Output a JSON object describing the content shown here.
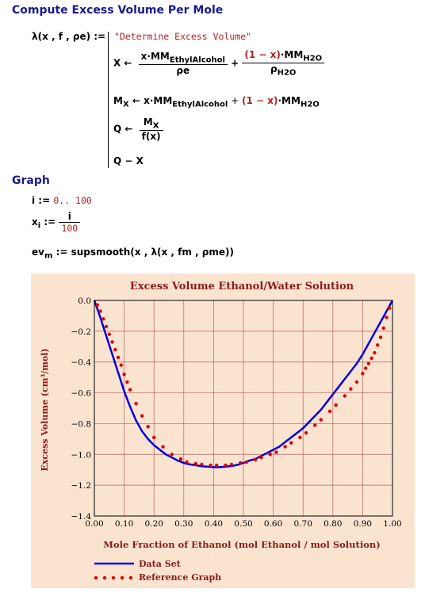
{
  "headings": {
    "compute": "Compute Excess Volume Per Mole",
    "graph": "Graph"
  },
  "program": {
    "def_lhs": "λ(x , f , ρe) :=",
    "comment": "\"Determine Excess Volume\"",
    "line_x": {
      "lhs": "X ←",
      "num1": "x·MM",
      "num1_sub": "EthylAlcohol",
      "den1": "ρe",
      "plus": "+",
      "num2_a": "(1 − x)",
      "num2_b": "·MM",
      "num2_sub": "H2O",
      "den2": "ρ",
      "den2_sub": "H2O"
    },
    "line_mx": {
      "lhs": "M",
      "lhs_sub": "X",
      "arrow": "← x·MM",
      "sub1": "EthylAlcohol",
      "plus": " + ",
      "term2_a": "(1 − x)",
      "term2_b": "·MM",
      "sub2": "H2O"
    },
    "line_q": {
      "lhs": "Q ←",
      "num": "M",
      "num_sub": "X",
      "den": "f(x)"
    },
    "line_ret": "Q − X"
  },
  "graph_defs": {
    "range_lhs": "i :=",
    "range_val": "0.. 100",
    "x_lhs": "x",
    "x_sub": "i",
    "x_assign": ":=",
    "x_num": "i",
    "x_den": "100",
    "ev_lhs": "ev",
    "ev_sub": "m",
    "ev_rhs": ":= supsmooth(x , λ(x , fm , ρme))"
  },
  "chart_data": {
    "type": "line",
    "title": "Excess Volume Ethanol/Water Solution",
    "xlabel": "Mole Fraction of Ethanol (mol Ethanol / mol Solution)",
    "ylabel": "Excess Volume (cm³/mol)",
    "xlim": [
      0,
      1
    ],
    "ylim": [
      -1.4,
      0
    ],
    "x_ticks": [
      "0.00",
      "0.10",
      "0.20",
      "0.30",
      "0.40",
      "0.50",
      "0.60",
      "0.70",
      "0.80",
      "0.90",
      "1.00"
    ],
    "y_ticks": [
      "0.0",
      "−0.2",
      "−0.4",
      "−0.6",
      "−0.8",
      "−1.0",
      "−1.2",
      "−1.4"
    ],
    "grid": true,
    "legend_position": "bottom-left",
    "colors": {
      "data_set": "#0000e0",
      "reference": "#e00000",
      "grid": "#b06060",
      "background": "#fbe4cf"
    },
    "series": [
      {
        "name": "Data Set",
        "style": "line",
        "x": [
          0,
          0.02,
          0.04,
          0.06,
          0.08,
          0.1,
          0.12,
          0.14,
          0.16,
          0.18,
          0.2,
          0.22,
          0.24,
          0.26,
          0.28,
          0.3,
          0.32,
          0.34,
          0.36,
          0.38,
          0.4,
          0.42,
          0.44,
          0.46,
          0.48,
          0.5,
          0.52,
          0.54,
          0.56,
          0.58,
          0.6,
          0.62,
          0.64,
          0.66,
          0.68,
          0.7,
          0.72,
          0.74,
          0.76,
          0.78,
          0.8,
          0.82,
          0.84,
          0.86,
          0.88,
          0.9,
          0.92,
          0.94,
          0.96,
          0.98,
          1.0
        ],
        "y": [
          0,
          -0.11,
          -0.23,
          -0.35,
          -0.47,
          -0.59,
          -0.69,
          -0.78,
          -0.85,
          -0.9,
          -0.94,
          -0.97,
          -1.0,
          -1.02,
          -1.04,
          -1.055,
          -1.065,
          -1.07,
          -1.077,
          -1.08,
          -1.083,
          -1.083,
          -1.08,
          -1.075,
          -1.068,
          -1.055,
          -1.04,
          -1.03,
          -1.01,
          -0.99,
          -0.97,
          -0.95,
          -0.92,
          -0.89,
          -0.86,
          -0.83,
          -0.79,
          -0.75,
          -0.71,
          -0.66,
          -0.61,
          -0.56,
          -0.51,
          -0.46,
          -0.41,
          -0.35,
          -0.28,
          -0.21,
          -0.14,
          -0.07,
          0
        ]
      },
      {
        "name": "Reference Graph",
        "style": "dots",
        "x": [
          0.01,
          0.02,
          0.03,
          0.04,
          0.05,
          0.06,
          0.07,
          0.08,
          0.09,
          0.1,
          0.11,
          0.12,
          0.14,
          0.16,
          0.18,
          0.2,
          0.23,
          0.26,
          0.29,
          0.31,
          0.34,
          0.36,
          0.39,
          0.41,
          0.44,
          0.46,
          0.49,
          0.51,
          0.54,
          0.56,
          0.59,
          0.61,
          0.64,
          0.66,
          0.69,
          0.71,
          0.74,
          0.76,
          0.79,
          0.81,
          0.84,
          0.86,
          0.88,
          0.9,
          0.91,
          0.92,
          0.93,
          0.94,
          0.95,
          0.96,
          0.97,
          0.98,
          0.99
        ],
        "y": [
          -0.03,
          -0.07,
          -0.12,
          -0.17,
          -0.22,
          -0.27,
          -0.32,
          -0.37,
          -0.42,
          -0.48,
          -0.53,
          -0.58,
          -0.67,
          -0.75,
          -0.82,
          -0.89,
          -0.95,
          -1.0,
          -1.03,
          -1.05,
          -1.06,
          -1.065,
          -1.07,
          -1.07,
          -1.07,
          -1.065,
          -1.055,
          -1.05,
          -1.035,
          -1.02,
          -1.0,
          -0.985,
          -0.95,
          -0.925,
          -0.89,
          -0.86,
          -0.81,
          -0.775,
          -0.72,
          -0.68,
          -0.62,
          -0.575,
          -0.53,
          -0.475,
          -0.44,
          -0.41,
          -0.375,
          -0.34,
          -0.29,
          -0.24,
          -0.18,
          -0.11,
          -0.05
        ]
      }
    ]
  }
}
